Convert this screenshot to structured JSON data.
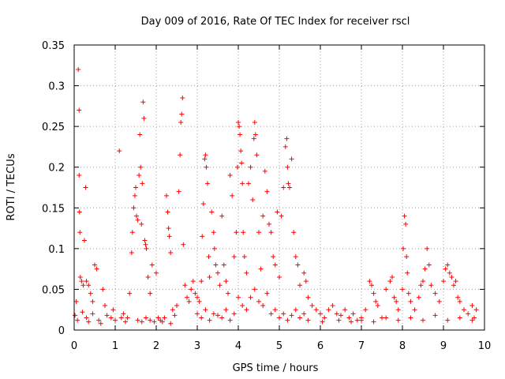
{
  "chart_data": {
    "type": "scatter",
    "title": "Day 009 of 2016, Rate Of TEC Index for receiver rscl",
    "xlabel": "GPS time / hours",
    "ylabel": "ROTI / TECUs",
    "xlim": [
      0,
      10
    ],
    "ylim": [
      0,
      0.35
    ],
    "xticks": [
      0,
      1,
      2,
      3,
      4,
      5,
      6,
      7,
      8,
      9,
      10
    ],
    "yticks": [
      0,
      0.05,
      0.1,
      0.15,
      0.2,
      0.25,
      0.3,
      0.35
    ],
    "ytick_labels": [
      "0",
      "0.05",
      "0.1",
      "0.15",
      "0.2",
      "0.25",
      "0.3",
      "0.35"
    ],
    "xtick_labels": [
      "0",
      "1",
      "2",
      "3",
      "4",
      "5",
      "6",
      "7",
      "8",
      "9",
      "10"
    ],
    "grid": true,
    "marker": "+",
    "color": "#ff0000",
    "series": [
      {
        "name": "ROTI",
        "points": [
          [
            0.05,
            0.035
          ],
          [
            0.1,
            0.32
          ],
          [
            0.12,
            0.27
          ],
          [
            0.12,
            0.19
          ],
          [
            0.13,
            0.145
          ],
          [
            0.14,
            0.12
          ],
          [
            0.15,
            0.065
          ],
          [
            0.18,
            0.06
          ],
          [
            0.22,
            0.055
          ],
          [
            0.25,
            0.11
          ],
          [
            0.28,
            0.175
          ],
          [
            0.3,
            0.06
          ],
          [
            0.35,
            0.055
          ],
          [
            0.4,
            0.045
          ],
          [
            0.45,
            0.035
          ],
          [
            0.5,
            0.08
          ],
          [
            0.55,
            0.075
          ],
          [
            0.02,
            0.018
          ],
          [
            0.08,
            0.012
          ],
          [
            0.2,
            0.022
          ],
          [
            0.3,
            0.015
          ],
          [
            0.45,
            0.02
          ],
          [
            0.6,
            0.012
          ],
          [
            0.7,
            0.05
          ],
          [
            0.75,
            0.03
          ],
          [
            0.8,
            0.018
          ],
          [
            0.9,
            0.015
          ],
          [
            0.95,
            0.025
          ],
          [
            1.0,
            0.012
          ],
          [
            1.1,
            0.22
          ],
          [
            1.15,
            0.015
          ],
          [
            1.2,
            0.02
          ],
          [
            1.3,
            0.015
          ],
          [
            1.35,
            0.045
          ],
          [
            1.4,
            0.095
          ],
          [
            1.42,
            0.12
          ],
          [
            1.45,
            0.15
          ],
          [
            1.48,
            0.165
          ],
          [
            1.5,
            0.175
          ],
          [
            1.52,
            0.14
          ],
          [
            1.55,
            0.135
          ],
          [
            1.58,
            0.19
          ],
          [
            1.6,
            0.24
          ],
          [
            1.62,
            0.2
          ],
          [
            1.64,
            0.13
          ],
          [
            1.66,
            0.18
          ],
          [
            1.68,
            0.28
          ],
          [
            1.7,
            0.26
          ],
          [
            1.72,
            0.11
          ],
          [
            1.74,
            0.105
          ],
          [
            1.76,
            0.1
          ],
          [
            1.8,
            0.065
          ],
          [
            1.85,
            0.045
          ],
          [
            1.9,
            0.08
          ],
          [
            1.55,
            0.012
          ],
          [
            1.65,
            0.01
          ],
          [
            1.75,
            0.015
          ],
          [
            1.85,
            0.012
          ],
          [
            1.95,
            0.01
          ],
          [
            2.0,
            0.07
          ],
          [
            2.05,
            0.015
          ],
          [
            2.1,
            0.012
          ],
          [
            2.2,
            0.015
          ],
          [
            2.25,
            0.165
          ],
          [
            2.28,
            0.145
          ],
          [
            2.3,
            0.125
          ],
          [
            2.32,
            0.115
          ],
          [
            2.35,
            0.095
          ],
          [
            2.4,
            0.025
          ],
          [
            2.45,
            0.018
          ],
          [
            2.5,
            0.03
          ],
          [
            2.55,
            0.17
          ],
          [
            2.58,
            0.215
          ],
          [
            2.6,
            0.255
          ],
          [
            2.62,
            0.265
          ],
          [
            2.64,
            0.285
          ],
          [
            2.66,
            0.105
          ],
          [
            2.7,
            0.055
          ],
          [
            2.75,
            0.04
          ],
          [
            2.8,
            0.035
          ],
          [
            2.85,
            0.05
          ],
          [
            2.9,
            0.06
          ],
          [
            2.95,
            0.045
          ],
          [
            3.0,
            0.04
          ],
          [
            3.05,
            0.035
          ],
          [
            3.1,
            0.06
          ],
          [
            3.12,
            0.115
          ],
          [
            3.15,
            0.155
          ],
          [
            3.18,
            0.21
          ],
          [
            3.2,
            0.215
          ],
          [
            3.22,
            0.2
          ],
          [
            3.25,
            0.18
          ],
          [
            3.28,
            0.09
          ],
          [
            3.3,
            0.065
          ],
          [
            3.35,
            0.145
          ],
          [
            3.4,
            0.12
          ],
          [
            3.42,
            0.1
          ],
          [
            3.45,
            0.08
          ],
          [
            3.5,
            0.07
          ],
          [
            3.55,
            0.055
          ],
          [
            3.6,
            0.14
          ],
          [
            3.65,
            0.08
          ],
          [
            3.7,
            0.06
          ],
          [
            3.75,
            0.045
          ],
          [
            3.8,
            0.19
          ],
          [
            3.85,
            0.165
          ],
          [
            3.9,
            0.09
          ],
          [
            3.95,
            0.12
          ],
          [
            3.98,
            0.2
          ],
          [
            4.0,
            0.255
          ],
          [
            4.02,
            0.25
          ],
          [
            4.04,
            0.24
          ],
          [
            4.06,
            0.22
          ],
          [
            4.08,
            0.205
          ],
          [
            4.1,
            0.18
          ],
          [
            4.12,
            0.12
          ],
          [
            4.15,
            0.09
          ],
          [
            4.2,
            0.07
          ],
          [
            4.25,
            0.18
          ],
          [
            4.3,
            0.2
          ],
          [
            4.35,
            0.16
          ],
          [
            4.38,
            0.235
          ],
          [
            4.4,
            0.255
          ],
          [
            4.42,
            0.24
          ],
          [
            4.45,
            0.215
          ],
          [
            4.5,
            0.12
          ],
          [
            4.55,
            0.075
          ],
          [
            4.6,
            0.14
          ],
          [
            4.65,
            0.195
          ],
          [
            4.7,
            0.17
          ],
          [
            4.75,
            0.13
          ],
          [
            4.8,
            0.12
          ],
          [
            4.85,
            0.09
          ],
          [
            4.9,
            0.08
          ],
          [
            4.95,
            0.145
          ],
          [
            5.0,
            0.065
          ],
          [
            5.05,
            0.14
          ],
          [
            5.1,
            0.175
          ],
          [
            5.15,
            0.225
          ],
          [
            5.18,
            0.235
          ],
          [
            5.2,
            0.2
          ],
          [
            5.22,
            0.18
          ],
          [
            5.25,
            0.175
          ],
          [
            5.3,
            0.21
          ],
          [
            5.35,
            0.12
          ],
          [
            5.4,
            0.09
          ],
          [
            5.45,
            0.08
          ],
          [
            5.5,
            0.055
          ],
          [
            5.6,
            0.07
          ],
          [
            5.65,
            0.06
          ],
          [
            5.7,
            0.04
          ],
          [
            3.0,
            0.02
          ],
          [
            3.1,
            0.015
          ],
          [
            3.2,
            0.025
          ],
          [
            3.3,
            0.012
          ],
          [
            3.4,
            0.02
          ],
          [
            3.5,
            0.018
          ],
          [
            3.6,
            0.015
          ],
          [
            3.7,
            0.025
          ],
          [
            3.8,
            0.012
          ],
          [
            3.9,
            0.02
          ],
          [
            4.0,
            0.04
          ],
          [
            4.1,
            0.03
          ],
          [
            4.2,
            0.025
          ],
          [
            4.3,
            0.04
          ],
          [
            4.4,
            0.05
          ],
          [
            4.5,
            0.035
          ],
          [
            4.6,
            0.03
          ],
          [
            4.7,
            0.045
          ],
          [
            4.8,
            0.02
          ],
          [
            4.9,
            0.025
          ],
          [
            5.0,
            0.015
          ],
          [
            5.1,
            0.02
          ],
          [
            5.2,
            0.012
          ],
          [
            5.3,
            0.018
          ],
          [
            5.4,
            0.025
          ],
          [
            5.5,
            0.015
          ],
          [
            5.6,
            0.02
          ],
          [
            5.7,
            0.012
          ],
          [
            5.8,
            0.03
          ],
          [
            5.9,
            0.025
          ],
          [
            6.0,
            0.02
          ],
          [
            6.1,
            0.015
          ],
          [
            6.2,
            0.025
          ],
          [
            6.3,
            0.03
          ],
          [
            6.4,
            0.02
          ],
          [
            6.5,
            0.018
          ],
          [
            6.6,
            0.025
          ],
          [
            6.7,
            0.015
          ],
          [
            6.8,
            0.02
          ],
          [
            6.9,
            0.012
          ],
          [
            7.0,
            0.015
          ],
          [
            7.1,
            0.025
          ],
          [
            7.2,
            0.06
          ],
          [
            7.25,
            0.055
          ],
          [
            7.3,
            0.045
          ],
          [
            7.35,
            0.035
          ],
          [
            7.4,
            0.03
          ],
          [
            7.5,
            0.015
          ],
          [
            7.6,
            0.05
          ],
          [
            7.7,
            0.06
          ],
          [
            7.75,
            0.065
          ],
          [
            7.8,
            0.04
          ],
          [
            7.85,
            0.035
          ],
          [
            7.9,
            0.025
          ],
          [
            8.0,
            0.05
          ],
          [
            8.02,
            0.1
          ],
          [
            8.05,
            0.14
          ],
          [
            8.08,
            0.13
          ],
          [
            8.1,
            0.09
          ],
          [
            8.12,
            0.07
          ],
          [
            8.15,
            0.045
          ],
          [
            8.2,
            0.035
          ],
          [
            8.3,
            0.025
          ],
          [
            8.4,
            0.04
          ],
          [
            8.45,
            0.055
          ],
          [
            8.5,
            0.06
          ],
          [
            8.55,
            0.075
          ],
          [
            8.6,
            0.1
          ],
          [
            8.65,
            0.08
          ],
          [
            8.7,
            0.055
          ],
          [
            8.8,
            0.045
          ],
          [
            8.9,
            0.035
          ],
          [
            9.0,
            0.06
          ],
          [
            9.05,
            0.075
          ],
          [
            9.1,
            0.08
          ],
          [
            9.15,
            0.07
          ],
          [
            9.2,
            0.065
          ],
          [
            9.25,
            0.055
          ],
          [
            9.3,
            0.06
          ],
          [
            9.35,
            0.04
          ],
          [
            9.4,
            0.035
          ],
          [
            9.5,
            0.025
          ],
          [
            9.6,
            0.02
          ],
          [
            9.7,
            0.03
          ],
          [
            9.75,
            0.015
          ],
          [
            9.8,
            0.025
          ],
          [
            7.0,
            0.012
          ],
          [
            7.3,
            0.01
          ],
          [
            7.6,
            0.015
          ],
          [
            7.9,
            0.012
          ],
          [
            8.2,
            0.015
          ],
          [
            8.5,
            0.012
          ],
          [
            8.8,
            0.018
          ],
          [
            9.1,
            0.012
          ],
          [
            9.4,
            0.015
          ],
          [
            9.7,
            0.012
          ],
          [
            0.35,
            0.01
          ],
          [
            0.65,
            0.008
          ],
          [
            1.25,
            0.01
          ],
          [
            2.15,
            0.01
          ],
          [
            2.35,
            0.008
          ],
          [
            6.05,
            0.01
          ],
          [
            6.45,
            0.012
          ],
          [
            6.75,
            0.01
          ]
        ]
      }
    ]
  }
}
